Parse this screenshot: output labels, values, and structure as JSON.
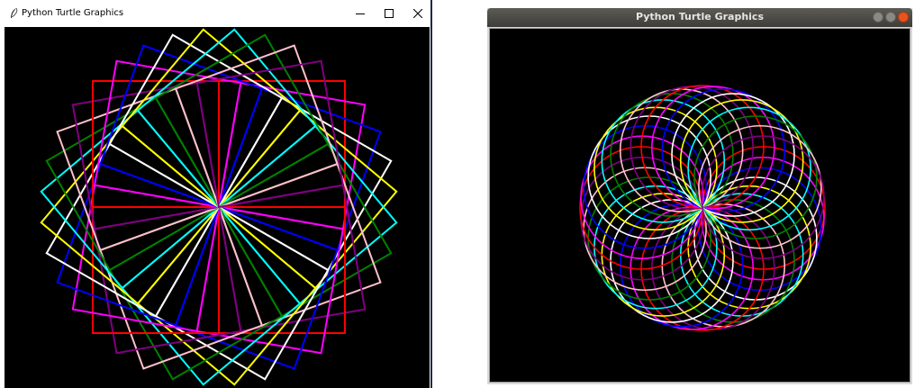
{
  "left_window": {
    "title": "Python Turtle Graphics",
    "controls": {
      "minimize": "minimize",
      "maximize": "maximize",
      "close": "close"
    },
    "drawing": {
      "shape": "rotated-squares-spiral",
      "colors": [
        "#ff0000",
        "#ff00ff",
        "#0000ff",
        "#ffffff",
        "#ffff00",
        "#00ffff",
        "#008000",
        "#ffc0cb",
        "#800080"
      ]
    }
  },
  "right_window": {
    "title": "Python Turtle Graphics",
    "drawing": {
      "shape": "circle-spirograph",
      "colors": [
        "#ff0000",
        "#ff00ff",
        "#0000ff",
        "#ffffff",
        "#ffff00",
        "#00ffff",
        "#008000",
        "#ffc0cb",
        "#800080"
      ]
    }
  }
}
